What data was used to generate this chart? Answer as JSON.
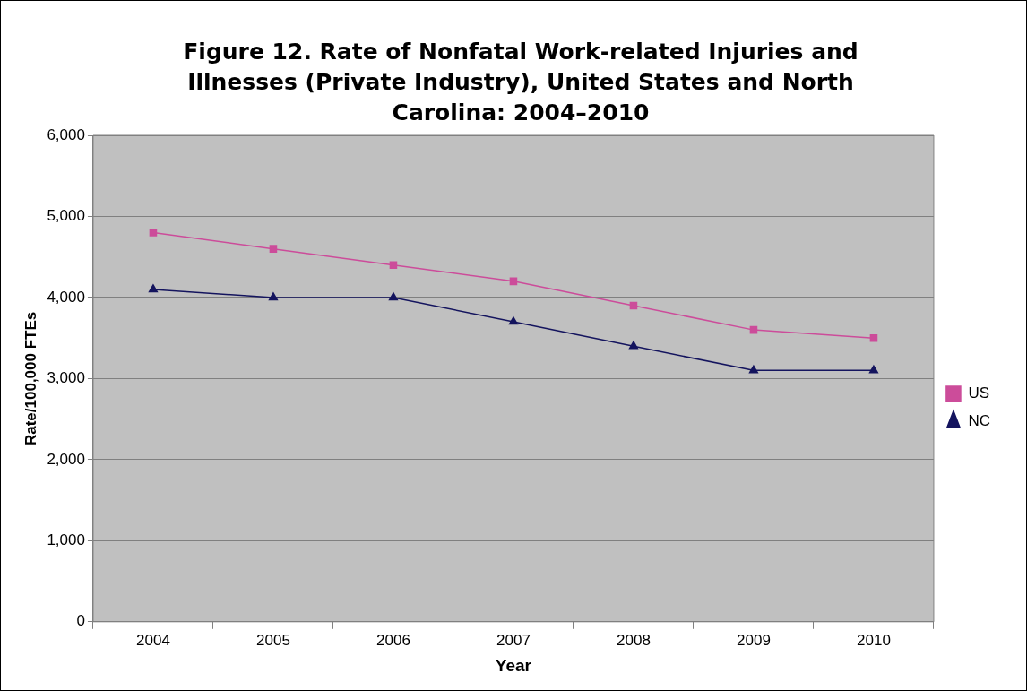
{
  "chart_data": {
    "type": "line",
    "title": "Figure 12. Rate of Nonfatal Work-related Injuries and Illnesses (Private Industry), United States and North Carolina: 2004–2010",
    "xlabel": "Year",
    "ylabel": "Rate/100,000 FTEs",
    "categories": [
      "2004",
      "2005",
      "2006",
      "2007",
      "2008",
      "2009",
      "2010"
    ],
    "series": [
      {
        "name": "US",
        "color": "#cc4c9a",
        "marker": "square",
        "values": [
          4800,
          4600,
          4400,
          4200,
          3900,
          3600,
          3500
        ]
      },
      {
        "name": "NC",
        "color": "#14145e",
        "marker": "triangle",
        "values": [
          4100,
          4000,
          4000,
          3700,
          3400,
          3100,
          3100
        ]
      }
    ],
    "ylim": [
      0,
      6000
    ],
    "yticks": [
      {
        "value": 0,
        "label": "0"
      },
      {
        "value": 1000,
        "label": "1,000"
      },
      {
        "value": 2000,
        "label": "2,000"
      },
      {
        "value": 3000,
        "label": "3,000"
      },
      {
        "value": 4000,
        "label": "4,000"
      },
      {
        "value": 5000,
        "label": "5,000"
      },
      {
        "value": 6000,
        "label": "6,000"
      }
    ],
    "grid": "y",
    "legend": "right",
    "line_style": "solid"
  }
}
